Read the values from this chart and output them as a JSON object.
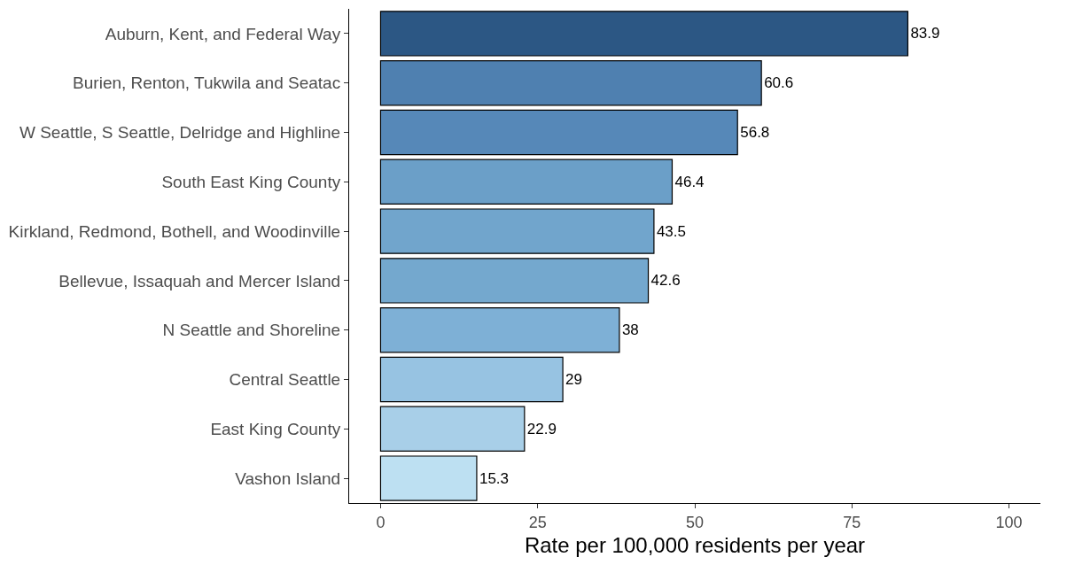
{
  "chart_data": {
    "type": "bar",
    "orientation": "horizontal",
    "categories": [
      "Auburn, Kent, and Federal Way",
      "Burien, Renton, Tukwila and Seatac",
      "W Seattle, S Seattle, Delridge and Highline",
      "South East King County",
      "Kirkland, Redmond, Bothell, and Woodinville",
      "Bellevue, Issaquah and Mercer Island",
      "N Seattle and Shoreline",
      "Central Seattle",
      "East King County",
      "Vashon Island"
    ],
    "values": [
      83.9,
      60.6,
      56.8,
      46.4,
      43.5,
      42.6,
      38,
      29,
      22.9,
      15.3
    ],
    "colors": [
      "#2c5784",
      "#4f80b0",
      "#5688b8",
      "#6b9fc8",
      "#71a5cc",
      "#74a8ce",
      "#7eb0d6",
      "#97c3e2",
      "#a8cfe8",
      "#bde0f2"
    ],
    "xlim": [
      -5,
      105
    ],
    "xticks": [
      0,
      25,
      50,
      75,
      100
    ],
    "xlabel": "Rate per 100,000 residents per year",
    "data_labels": true
  }
}
